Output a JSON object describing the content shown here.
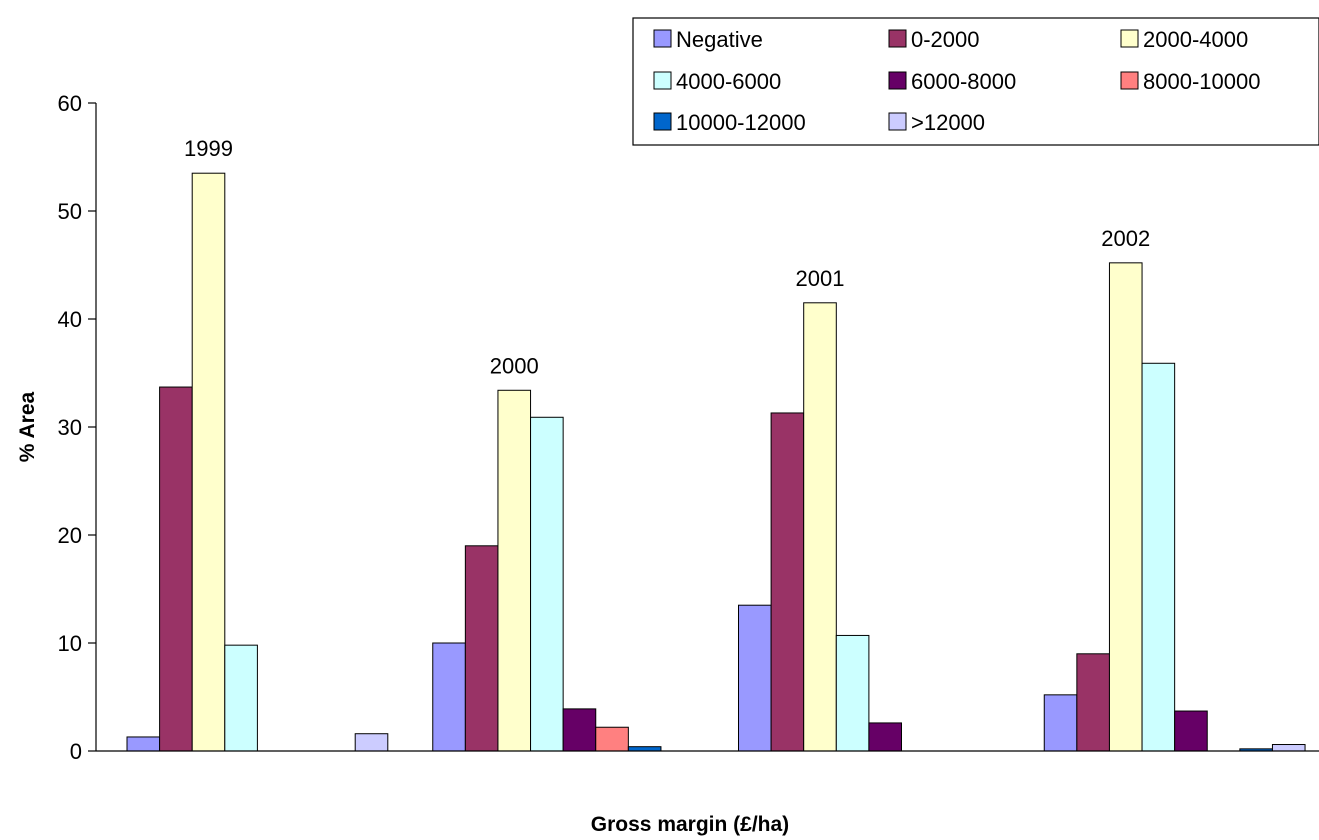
{
  "chart_data": {
    "type": "bar",
    "xlabel": "Gross margin (£/ha)",
    "ylabel": "% Area",
    "ylim": [
      0,
      60
    ],
    "yticks": [
      0,
      10,
      20,
      30,
      40,
      50,
      60
    ],
    "grid": false,
    "legend_position": "top-right",
    "categories": [
      "1999",
      "2000",
      "2001",
      "2002"
    ],
    "series": [
      {
        "name": "Negative",
        "color": "#9999FF",
        "values": [
          1.3,
          10.0,
          13.5,
          5.2
        ]
      },
      {
        "name": "0-2000",
        "color": "#993366",
        "values": [
          33.7,
          19.0,
          31.3,
          9.0
        ]
      },
      {
        "name": "2000-4000",
        "color": "#FFFFCC",
        "values": [
          53.5,
          33.4,
          41.5,
          45.2
        ]
      },
      {
        "name": "4000-6000",
        "color": "#CCFFFF",
        "values": [
          9.8,
          30.9,
          10.7,
          35.9
        ]
      },
      {
        "name": "6000-8000",
        "color": "#660066",
        "values": [
          0,
          3.9,
          2.6,
          3.7
        ]
      },
      {
        "name": "8000-10000",
        "color": "#FF8080",
        "values": [
          0,
          2.2,
          0,
          0
        ]
      },
      {
        "name": "10000-12000",
        "color": "#0066CC",
        "values": [
          0,
          0.4,
          0,
          0.2
        ]
      },
      {
        "name": ">12000",
        "color": "#CCCCFF",
        "values": [
          1.6,
          0,
          0,
          0.6
        ]
      }
    ]
  }
}
